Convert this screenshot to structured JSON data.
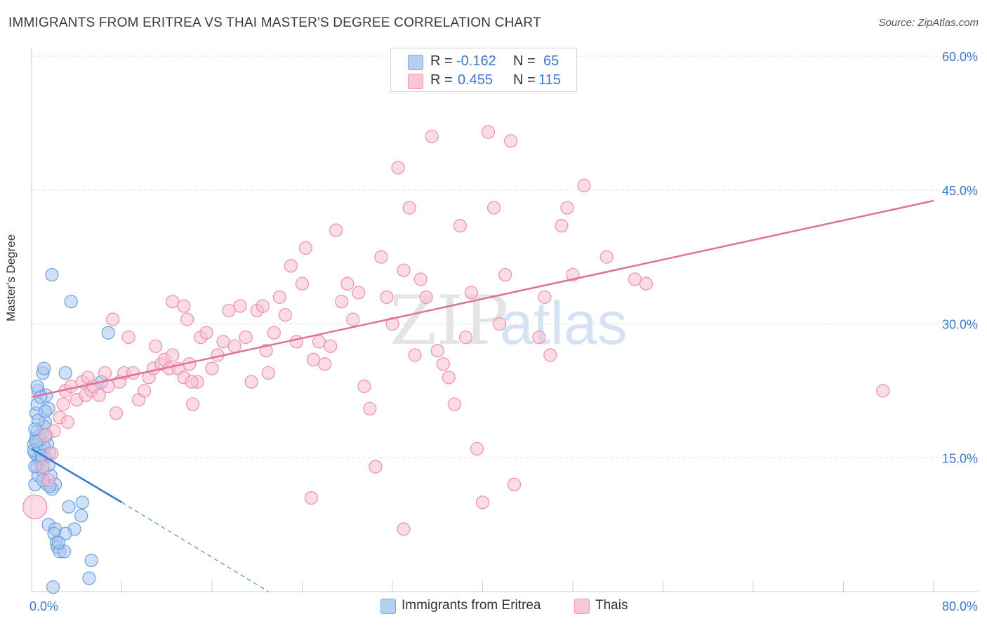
{
  "header": {
    "title": "IMMIGRANTS FROM ERITREA VS THAI MASTER'S DEGREE CORRELATION CHART",
    "source": "Source: ZipAtlas.com"
  },
  "watermark": {
    "zip": "ZIP",
    "atlas": "atlas"
  },
  "legend": {
    "r_label": "R =",
    "n_label": "N =",
    "rows": [
      {
        "r": "-0.162",
        "n": "65"
      },
      {
        "r": "0.455",
        "n": "115"
      }
    ]
  },
  "colors": {
    "blue_fill": "#a9c8f0",
    "blue_stroke": "#6a9fe0",
    "blue_line": "#2f78d0",
    "pink_fill": "#f7bfd0",
    "pink_stroke": "#ee8fae",
    "pink_line": "#e0709a",
    "tick_text": "#3c78c8",
    "grid": "#dddddd"
  },
  "chart_data": {
    "type": "scatter",
    "title": "IMMIGRANTS FROM ERITREA VS THAI MASTER'S DEGREE CORRELATION CHART",
    "xlabel": "",
    "ylabel": "Master's Degree",
    "xlim": [
      0,
      80
    ],
    "ylim": [
      0,
      60
    ],
    "x_tick_labels": [
      "0.0%",
      "80.0%"
    ],
    "y_ticks": [
      15,
      30,
      45,
      60
    ],
    "y_tick_labels": [
      "15.0%",
      "30.0%",
      "45.0%",
      "60.0%"
    ],
    "series": [
      {
        "name": "Immigrants from Eritrea",
        "r": -0.162,
        "n": 65,
        "trend": {
          "x0": 0,
          "y0": 16.0,
          "x1": 8,
          "y1": 10.0,
          "dash_to_x": 21,
          "dash_to_y": 0.0
        },
        "points": [
          [
            0.2,
            16.5
          ],
          [
            0.3,
            15.5
          ],
          [
            0.4,
            17.2
          ],
          [
            0.5,
            14.0
          ],
          [
            0.3,
            12.0
          ],
          [
            0.6,
            15.0
          ],
          [
            0.5,
            18.0
          ],
          [
            0.7,
            16.0
          ],
          [
            0.8,
            17.5
          ],
          [
            0.4,
            20.0
          ],
          [
            0.5,
            21.0
          ],
          [
            0.6,
            22.5
          ],
          [
            0.5,
            23.0
          ],
          [
            1.0,
            24.5
          ],
          [
            1.1,
            25.0
          ],
          [
            1.3,
            22.0
          ],
          [
            1.5,
            20.5
          ],
          [
            1.2,
            19.0
          ],
          [
            1.1,
            18.5
          ],
          [
            1.3,
            17.5
          ],
          [
            1.4,
            16.5
          ],
          [
            1.6,
            15.5
          ],
          [
            1.2,
            15.0
          ],
          [
            0.8,
            14.5
          ],
          [
            1.0,
            13.5
          ],
          [
            1.7,
            13.0
          ],
          [
            1.4,
            12.0
          ],
          [
            2.1,
            12.0
          ],
          [
            1.8,
            11.5
          ],
          [
            1.6,
            11.8
          ],
          [
            0.9,
            14.8
          ],
          [
            1.1,
            16.2
          ],
          [
            0.6,
            13.0
          ],
          [
            3.0,
            24.5
          ],
          [
            3.5,
            32.5
          ],
          [
            1.8,
            35.5
          ],
          [
            6.8,
            29.0
          ],
          [
            6.2,
            23.5
          ],
          [
            4.5,
            10.0
          ],
          [
            3.3,
            9.5
          ],
          [
            4.4,
            8.5
          ],
          [
            1.5,
            7.5
          ],
          [
            2.1,
            7.0
          ],
          [
            3.8,
            7.0
          ],
          [
            2.0,
            6.5
          ],
          [
            3.0,
            6.5
          ],
          [
            2.2,
            5.5
          ],
          [
            2.3,
            5.0
          ],
          [
            2.5,
            4.5
          ],
          [
            2.9,
            4.5
          ],
          [
            5.3,
            3.5
          ],
          [
            5.1,
            1.5
          ],
          [
            1.9,
            0.5
          ],
          [
            2.4,
            5.5
          ],
          [
            0.3,
            14.0
          ],
          [
            0.2,
            15.8
          ],
          [
            0.7,
            17.0
          ],
          [
            1.0,
            12.5
          ],
          [
            0.9,
            15.2
          ],
          [
            0.4,
            16.8
          ],
          [
            1.5,
            14.2
          ],
          [
            0.6,
            19.2
          ],
          [
            1.2,
            20.2
          ],
          [
            0.8,
            21.8
          ],
          [
            0.3,
            18.2
          ]
        ]
      },
      {
        "name": "Thais",
        "r": 0.455,
        "n": 115,
        "trend": {
          "x0": 0,
          "y0": 21.8,
          "x1": 80,
          "y1": 43.8
        },
        "points": [
          [
            0.3,
            9.5
          ],
          [
            1.5,
            12.5
          ],
          [
            1.8,
            15.5
          ],
          [
            2.0,
            18.0
          ],
          [
            2.5,
            19.5
          ],
          [
            2.8,
            21.0
          ],
          [
            3.0,
            22.5
          ],
          [
            3.5,
            23.0
          ],
          [
            1.2,
            17.5
          ],
          [
            1.0,
            14.0
          ],
          [
            3.2,
            19.0
          ],
          [
            4.0,
            21.5
          ],
          [
            4.5,
            23.5
          ],
          [
            4.8,
            22.0
          ],
          [
            5.3,
            22.5
          ],
          [
            5.0,
            24.0
          ],
          [
            5.5,
            23.0
          ],
          [
            6.0,
            22.0
          ],
          [
            6.5,
            24.5
          ],
          [
            6.8,
            23.0
          ],
          [
            7.2,
            30.5
          ],
          [
            7.5,
            20.0
          ],
          [
            7.8,
            23.5
          ],
          [
            8.2,
            24.5
          ],
          [
            8.6,
            28.5
          ],
          [
            9.0,
            24.5
          ],
          [
            9.5,
            21.5
          ],
          [
            10.0,
            22.5
          ],
          [
            10.4,
            24.0
          ],
          [
            10.8,
            25.0
          ],
          [
            11.0,
            27.5
          ],
          [
            11.5,
            25.5
          ],
          [
            11.8,
            26.0
          ],
          [
            12.2,
            25.0
          ],
          [
            12.5,
            26.5
          ],
          [
            13.0,
            25.0
          ],
          [
            13.5,
            24.0
          ],
          [
            14.0,
            25.5
          ],
          [
            14.3,
            21.0
          ],
          [
            14.7,
            23.5
          ],
          [
            12.5,
            32.5
          ],
          [
            13.5,
            32.0
          ],
          [
            13.8,
            30.5
          ],
          [
            14.2,
            23.5
          ],
          [
            15.0,
            28.5
          ],
          [
            15.5,
            29.0
          ],
          [
            16.0,
            25.0
          ],
          [
            16.5,
            26.5
          ],
          [
            17.0,
            28.0
          ],
          [
            17.5,
            31.5
          ],
          [
            18.0,
            27.5
          ],
          [
            18.5,
            32.0
          ],
          [
            19.0,
            28.5
          ],
          [
            19.5,
            23.5
          ],
          [
            20.0,
            31.5
          ],
          [
            20.5,
            32.0
          ],
          [
            20.8,
            27.0
          ],
          [
            21.0,
            24.5
          ],
          [
            21.5,
            29.0
          ],
          [
            22.0,
            33.0
          ],
          [
            22.5,
            31.0
          ],
          [
            23.0,
            36.5
          ],
          [
            23.5,
            28.0
          ],
          [
            24.0,
            34.5
          ],
          [
            24.3,
            38.5
          ],
          [
            24.8,
            10.5
          ],
          [
            25.0,
            26.0
          ],
          [
            25.5,
            28.0
          ],
          [
            26.0,
            25.5
          ],
          [
            26.5,
            27.5
          ],
          [
            27.0,
            40.5
          ],
          [
            27.5,
            32.5
          ],
          [
            28.0,
            34.5
          ],
          [
            28.5,
            30.5
          ],
          [
            29.0,
            33.5
          ],
          [
            29.5,
            23.0
          ],
          [
            30.0,
            20.5
          ],
          [
            30.5,
            14.0
          ],
          [
            31.0,
            37.5
          ],
          [
            31.5,
            33.0
          ],
          [
            32.0,
            30.0
          ],
          [
            32.5,
            47.5
          ],
          [
            33.0,
            36.0
          ],
          [
            33.5,
            43.0
          ],
          [
            34.0,
            26.5
          ],
          [
            34.5,
            35.0
          ],
          [
            35.0,
            33.0
          ],
          [
            35.5,
            51.0
          ],
          [
            36.0,
            27.0
          ],
          [
            36.5,
            25.5
          ],
          [
            37.0,
            24.0
          ],
          [
            37.5,
            21.0
          ],
          [
            38.0,
            41.0
          ],
          [
            38.5,
            28.5
          ],
          [
            39.0,
            33.5
          ],
          [
            39.5,
            16.0
          ],
          [
            40.0,
            10.0
          ],
          [
            40.5,
            51.5
          ],
          [
            41.0,
            43.0
          ],
          [
            41.5,
            30.0
          ],
          [
            42.0,
            35.5
          ],
          [
            42.5,
            50.5
          ],
          [
            42.8,
            12.0
          ],
          [
            45.0,
            28.5
          ],
          [
            45.5,
            33.0
          ],
          [
            46.0,
            26.5
          ],
          [
            47.0,
            41.0
          ],
          [
            47.5,
            43.0
          ],
          [
            48.0,
            35.5
          ],
          [
            49.0,
            45.5
          ],
          [
            51.0,
            37.5
          ],
          [
            53.5,
            35.0
          ],
          [
            54.5,
            34.5
          ],
          [
            75.5,
            22.5
          ],
          [
            33.0,
            7.0
          ]
        ]
      }
    ]
  },
  "bottom_legend": [
    {
      "label": "Immigrants from Eritrea"
    },
    {
      "label": "Thais"
    }
  ]
}
